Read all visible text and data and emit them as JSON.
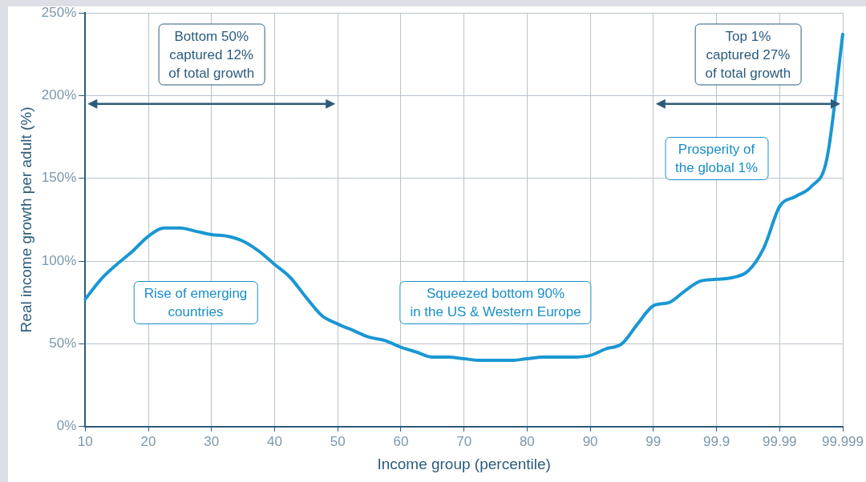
{
  "chart_data": {
    "type": "line",
    "xlabel": "Income group (percentile)",
    "ylabel": "Real income growth per adult (%)",
    "categories": [
      "10",
      null,
      null,
      null,
      "20",
      null,
      null,
      null,
      "30",
      null,
      null,
      null,
      "40",
      null,
      null,
      null,
      "50",
      null,
      null,
      null,
      "60",
      null,
      null,
      null,
      "70",
      null,
      null,
      null,
      "80",
      null,
      null,
      null,
      "90",
      null,
      null,
      null,
      "99",
      null,
      null,
      null,
      "99.9",
      null,
      null,
      null,
      "99.99",
      null,
      null,
      null,
      "99.999"
    ],
    "series": [
      {
        "color": "#1a97d3",
        "values": [
          77,
          89,
          98,
          106,
          115,
          120,
          120,
          118,
          116,
          115,
          112,
          106,
          98,
          90,
          78,
          67,
          62,
          58,
          54,
          52,
          48,
          45,
          42,
          42,
          41,
          40,
          40,
          40,
          41,
          42,
          42,
          42,
          43,
          47,
          50,
          62,
          73,
          75,
          82,
          88,
          89,
          90,
          94,
          108,
          133,
          139,
          145,
          162,
          237
        ]
      }
    ],
    "ylim": [
      0,
      250
    ],
    "yticks": [
      {
        "value": 0,
        "label": "0%"
      },
      {
        "value": 50,
        "label": "50%"
      },
      {
        "value": 100,
        "label": "100%"
      },
      {
        "value": 150,
        "label": "150%"
      },
      {
        "value": 200,
        "label": "200%"
      },
      {
        "value": 250,
        "label": "250%"
      }
    ],
    "grid": true,
    "legend": false,
    "marker": "none",
    "line_style": "solid",
    "annotations": [
      "Bottom 50%\ncaptured 12%\nof total growth",
      "Top 1%\ncaptured 27%\nof total growth",
      "Prosperity of\nthe global 1%",
      "Rise of emerging\ncountries",
      "Squeezed bottom 90%\nin the US & Western Europe"
    ]
  }
}
